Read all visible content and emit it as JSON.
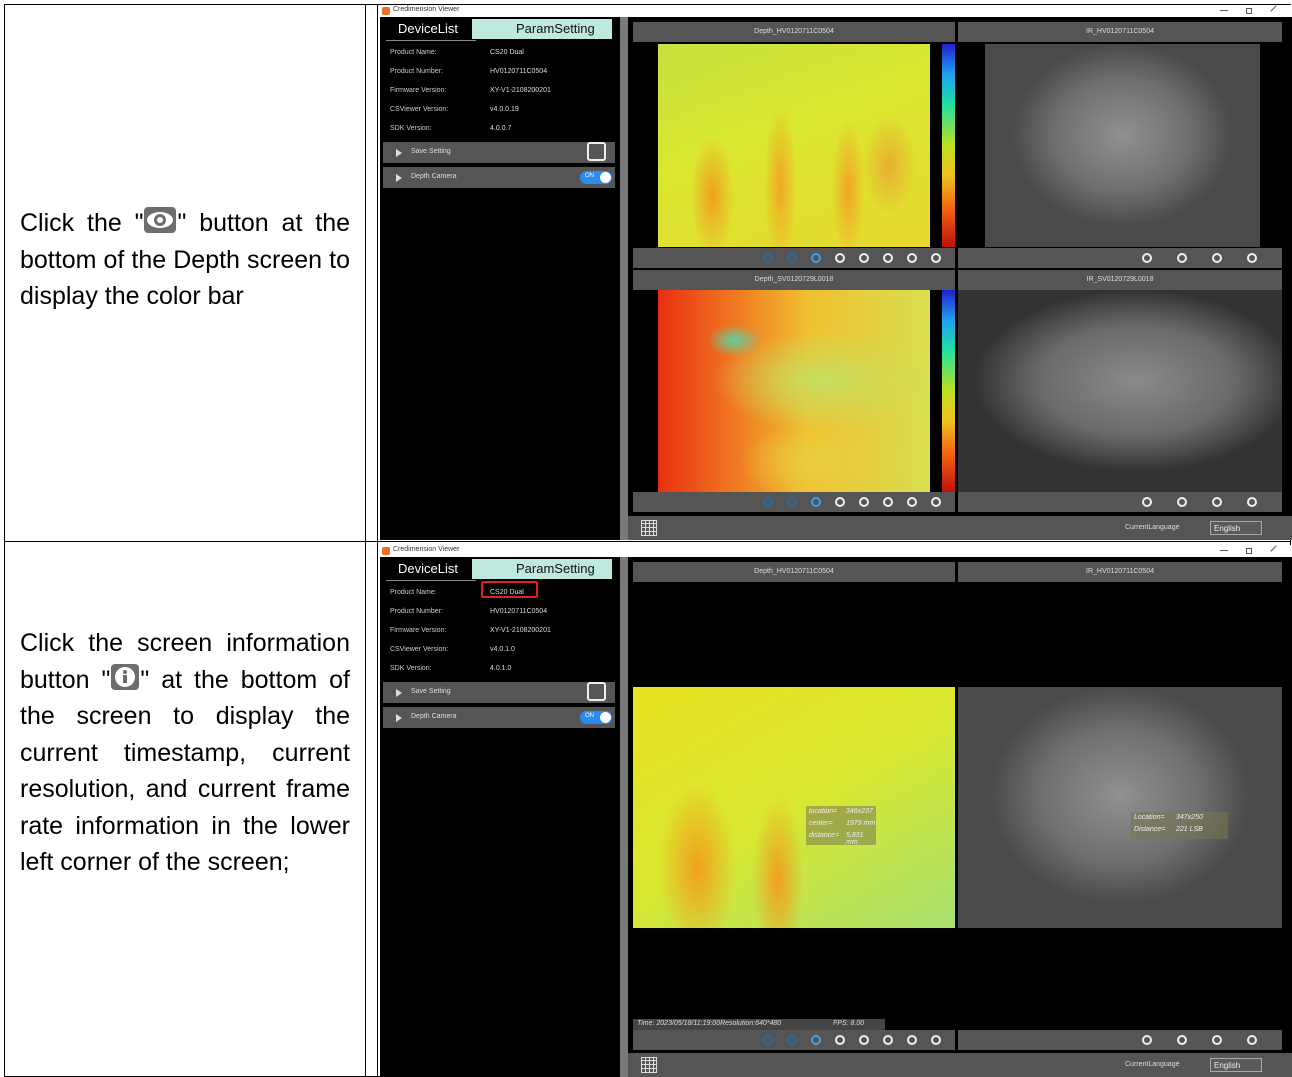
{
  "table": {
    "rows": [
      {
        "text_before": "Click the \"",
        "text_after": "\" button at the bottom of the Depth screen to display the color bar",
        "screenshot": {
          "window_title": "Credimension Viewer",
          "tabs": [
            "DeviceList",
            "ParamSetting"
          ],
          "fields": [
            [
              "Product Name:",
              "CS20 Dual"
            ],
            [
              "Product Number:",
              "HV0120711C0504"
            ],
            [
              "Firmware Version:",
              "XY-V1-2108200201"
            ],
            [
              "CSViewer Version:",
              "v4.0.0.19"
            ],
            [
              "SDK Version:",
              "4.0.0.7"
            ]
          ],
          "sections": [
            "Save Setting",
            "Depth Camera"
          ],
          "toggle": "ON",
          "panes": [
            "Depth_HV0120711C0504",
            "IR_HV0120711C0504",
            "Depth_SV0120729L0018",
            "IR_SV0120729L0018"
          ],
          "language_label": "CurrentLanguage",
          "language": "English"
        }
      },
      {
        "text_before": "Click the screen information button \"",
        "text_after": "\" at the bottom of the screen to display the current timestamp, current resolution, and current frame rate information in the lower left corner of the screen;",
        "screenshot": {
          "window_title": "Credimension Viewer",
          "tabs": [
            "DeviceList",
            "ParamSetting"
          ],
          "fields": [
            [
              "Product Name:",
              "CS20 Dual"
            ],
            [
              "Product Number:",
              "HV0120711C0504"
            ],
            [
              "Firmware Version:",
              "XY-V1-2108200201"
            ],
            [
              "CSViewer Version:",
              "v4.0.1.0"
            ],
            [
              "SDK Version:",
              "4.0.1.0"
            ]
          ],
          "sections": [
            "Save Setting",
            "Depth Camera"
          ],
          "toggle": "ON",
          "panes": [
            "Depth_HV0120711C0504",
            "IR_HV0120711C0504"
          ],
          "depth_overlay": [
            [
              "location=",
              "346x237"
            ],
            [
              "center=",
              "1979 mm"
            ],
            [
              "distance=",
              "5,831 mm"
            ]
          ],
          "ir_overlay": [
            [
              "Location=",
              "347x250"
            ],
            [
              "Distance=",
              "221 LSB"
            ]
          ],
          "info_bar": [
            "Time: 2023/05/18/11:19:00Resolution:640*480",
            "FPS: 8.00"
          ],
          "language_label": "CurrentLanguage",
          "language": "English"
        }
      }
    ]
  }
}
